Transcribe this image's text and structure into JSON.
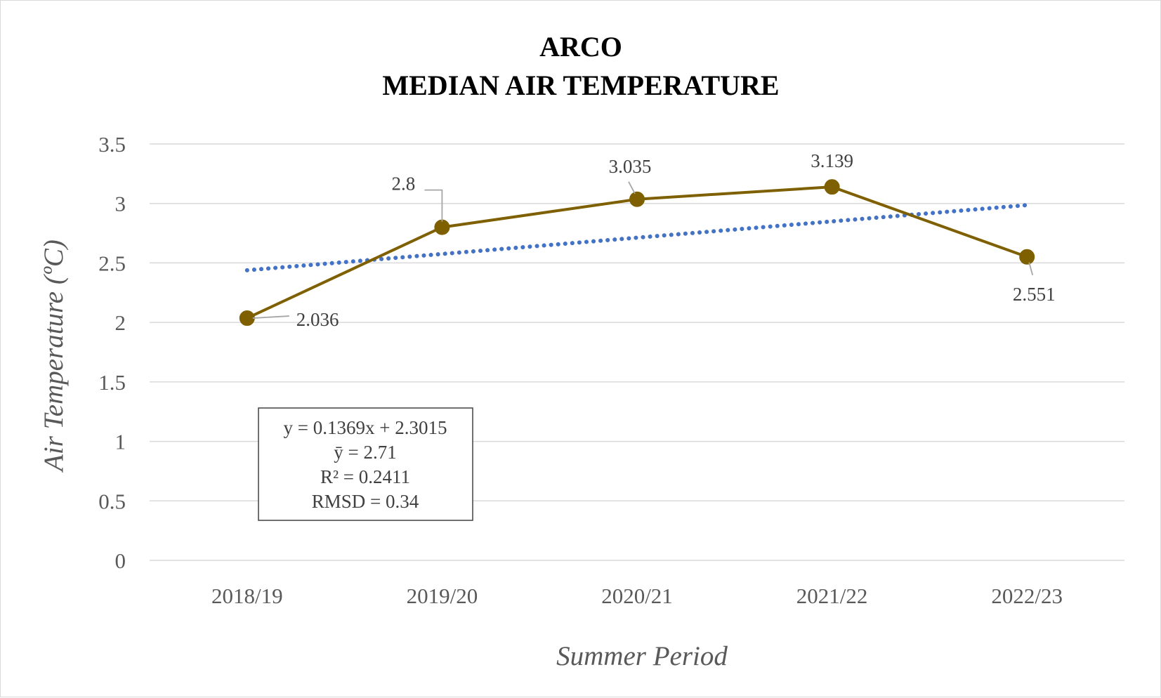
{
  "chart_data": {
    "type": "line",
    "title_lines": [
      "ARCO",
      "MEDIAN AIR TEMPERATURE"
    ],
    "xlabel": "Summer Period",
    "ylabel": "Air Temperature (ºC)",
    "categories": [
      "2018/19",
      "2019/20",
      "2020/21",
      "2021/22",
      "2022/23"
    ],
    "series": [
      {
        "values": [
          2.036,
          2.8,
          3.035,
          3.139,
          2.551
        ],
        "data_labels": [
          "2.036",
          "2.8",
          "3.035",
          "3.139",
          "2.551"
        ],
        "color": "#7f6000"
      }
    ],
    "trendline": {
      "type": "linear",
      "slope": 0.1369,
      "intercept": 2.3015,
      "color": "#4472c4",
      "style": "dotted"
    },
    "stats_box": [
      "y = 0.1369x + 2.3015",
      "ȳ = 2.71",
      "R² = 0.2411",
      "RMSD = 0.34"
    ],
    "ylim": [
      0,
      3.5
    ],
    "yticks": [
      "0",
      "0.5",
      "1",
      "1.5",
      "2",
      "2.5",
      "3",
      "3.5"
    ],
    "grid": true,
    "gridline_color": "#d9d9d9"
  }
}
